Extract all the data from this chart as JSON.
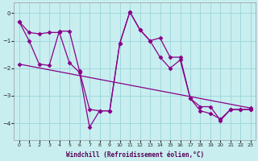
{
  "xlabel": "Windchill (Refroidissement éolien,°C)",
  "bg_color": "#c8eef0",
  "grid_color": "#a0d8dc",
  "line_color": "#880088",
  "xlim": [
    -0.5,
    23.5
  ],
  "ylim": [
    -4.6,
    0.4
  ],
  "xticks": [
    0,
    1,
    2,
    3,
    4,
    5,
    6,
    7,
    8,
    9,
    10,
    11,
    12,
    13,
    14,
    15,
    16,
    17,
    18,
    19,
    20,
    21,
    22,
    23
  ],
  "yticks": [
    0,
    -1,
    -2,
    -3,
    -4
  ],
  "line1_x": [
    0,
    1,
    2,
    3,
    4,
    5,
    6,
    7,
    8,
    9,
    10,
    11,
    12,
    13,
    14,
    15,
    16,
    17,
    18,
    19,
    20,
    21,
    22,
    23
  ],
  "line1_y": [
    -0.3,
    -0.7,
    -0.75,
    -0.7,
    -0.7,
    -1.8,
    -2.15,
    -4.15,
    -3.55,
    -3.55,
    -1.1,
    0.05,
    -0.6,
    -1.0,
    -0.9,
    -1.6,
    -1.6,
    -3.1,
    -3.55,
    -3.65,
    -3.85,
    -3.5,
    -3.5,
    -3.5
  ],
  "line2_x": [
    0,
    1,
    2,
    3,
    4,
    5,
    6,
    7,
    8,
    9,
    10,
    11,
    12,
    13,
    14,
    15,
    16,
    17,
    18,
    19,
    20,
    21,
    22,
    23
  ],
  "line2_y": [
    -0.3,
    -1.0,
    -1.85,
    -1.9,
    -0.65,
    -0.65,
    -2.1,
    -3.5,
    -3.55,
    -3.55,
    -1.1,
    0.05,
    -0.6,
    -1.0,
    -1.6,
    -2.0,
    -1.7,
    -3.1,
    -3.4,
    -3.4,
    -3.9,
    -3.5,
    -3.5,
    -3.5
  ],
  "line3_x": [
    0,
    23
  ],
  "line3_y": [
    -1.85,
    -3.45
  ]
}
